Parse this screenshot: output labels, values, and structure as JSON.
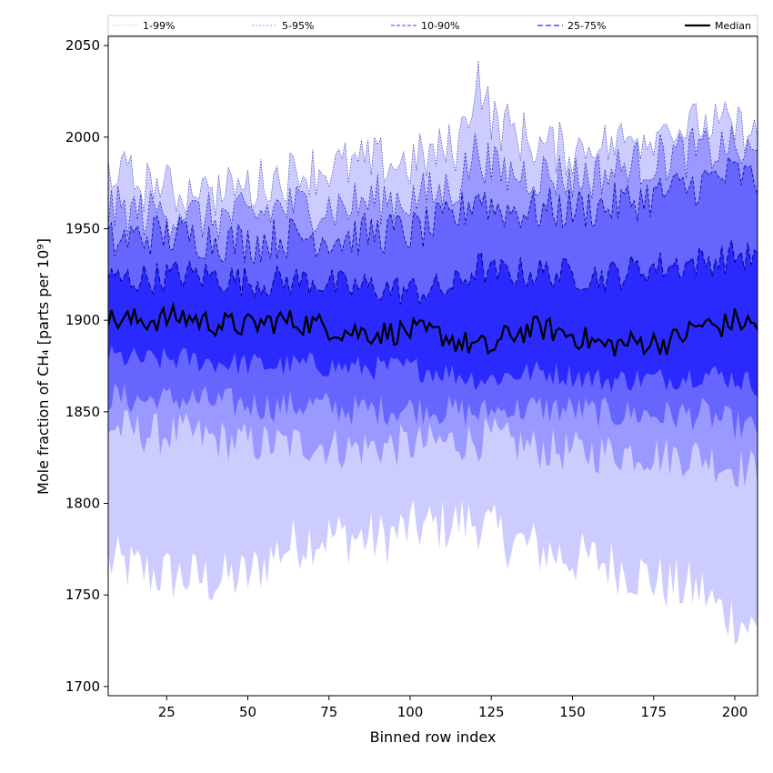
{
  "chart_data": {
    "type": "area",
    "xlabel": "Binned row index",
    "ylabel": "Mole fraction of CH₄ [parts per 10⁹]",
    "xlim": [
      7,
      207
    ],
    "ylim": [
      1695,
      2055
    ],
    "x_ticks": [
      25,
      50,
      75,
      100,
      125,
      150,
      175,
      200
    ],
    "y_ticks": [
      1700,
      1750,
      1800,
      1850,
      1900,
      1950,
      2000,
      2050
    ],
    "grid": false,
    "legend_position": "top",
    "legend": [
      "1-99%",
      "5-95%",
      "10-90%",
      "25-75%",
      "Median"
    ],
    "colors": {
      "band_1_99": "#ccccff",
      "band_5_95": "#9999ff",
      "band_10_90": "#6666ff",
      "band_25_75": "#2a2aff",
      "median": "#000000",
      "band_edge": "#00008b"
    },
    "x_range": [
      7,
      207
    ],
    "anchors": {
      "x": [
        7,
        20,
        30,
        40,
        50,
        60,
        70,
        80,
        90,
        100,
        110,
        115,
        121,
        125,
        130,
        140,
        150,
        160,
        170,
        180,
        190,
        195,
        200,
        207
      ],
      "median": [
        1900,
        1900,
        1902,
        1898,
        1897,
        1900,
        1898,
        1894,
        1893,
        1894,
        1892,
        1888,
        1886,
        1884,
        1892,
        1896,
        1892,
        1886,
        1888,
        1888,
        1898,
        1896,
        1900,
        1897
      ],
      "p25": [
        1880,
        1878,
        1879,
        1877,
        1876,
        1875,
        1876,
        1874,
        1874,
        1874,
        1872,
        1870,
        1868,
        1868,
        1870,
        1872,
        1870,
        1867,
        1868,
        1868,
        1871,
        1870,
        1868,
        1865
      ],
      "p75": [
        1922,
        1923,
        1925,
        1924,
        1921,
        1921,
        1922,
        1918,
        1918,
        1916,
        1917,
        1920,
        1930,
        1925,
        1926,
        1926,
        1925,
        1924,
        1928,
        1930,
        1932,
        1933,
        1936,
        1934
      ],
      "p10": [
        1858,
        1856,
        1857,
        1855,
        1854,
        1853,
        1854,
        1851,
        1851,
        1852,
        1851,
        1850,
        1849,
        1850,
        1851,
        1852,
        1851,
        1849,
        1849,
        1848,
        1849,
        1846,
        1843,
        1840
      ],
      "p90": [
        1942,
        1947,
        1946,
        1944,
        1942,
        1945,
        1946,
        1945,
        1948,
        1948,
        1953,
        1957,
        1970,
        1962,
        1960,
        1960,
        1961,
        1962,
        1966,
        1970,
        1975,
        1978,
        1980,
        1975
      ],
      "p5": [
        1842,
        1838,
        1838,
        1835,
        1833,
        1832,
        1833,
        1830,
        1831,
        1832,
        1833,
        1834,
        1835,
        1836,
        1833,
        1830,
        1828,
        1828,
        1828,
        1826,
        1826,
        1822,
        1820,
        1818
      ],
      "p95": [
        1960,
        1958,
        1957,
        1956,
        1956,
        1962,
        1962,
        1962,
        1966,
        1966,
        1970,
        1975,
        1995,
        1982,
        1980,
        1980,
        1978,
        1980,
        1985,
        1990,
        1992,
        1993,
        1992,
        1988
      ],
      "p1": [
        1768,
        1762,
        1760,
        1758,
        1760,
        1775,
        1782,
        1782,
        1780,
        1786,
        1788,
        1790,
        1790,
        1785,
        1780,
        1775,
        1770,
        1768,
        1762,
        1755,
        1752,
        1742,
        1738,
        1730
      ],
      "p99": [
        1982,
        1972,
        1970,
        1968,
        1972,
        1978,
        1982,
        1984,
        1986,
        1986,
        1992,
        1996,
        2035,
        2010,
        2005,
        1995,
        1993,
        1995,
        2000,
        2005,
        2005,
        2005,
        2005,
        1998
      ]
    }
  }
}
